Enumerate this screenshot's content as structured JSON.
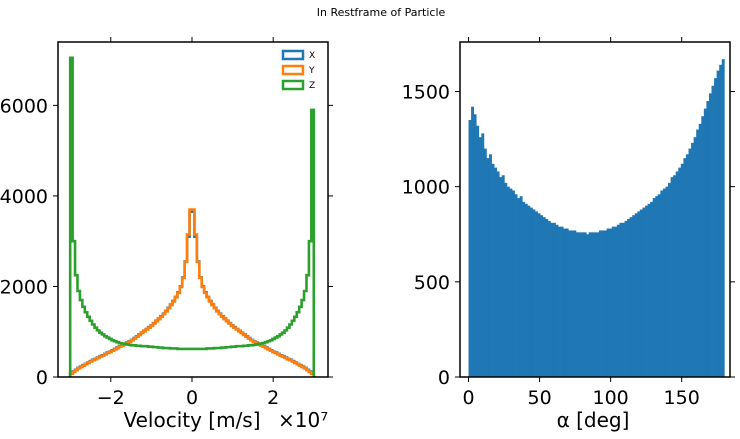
{
  "figure": {
    "suptitle": "In Restframe of Particle"
  },
  "chart_data": [
    {
      "type": "histogram",
      "xlabel": "Velocity [m/s]",
      "x_offset_text": "×10⁷",
      "x_scale": 10000000,
      "xlim": [
        -3.3,
        3.35
      ],
      "ylim": [
        0,
        7400
      ],
      "xticks": [
        -2,
        0,
        2
      ],
      "xtick_labels": [
        "−2",
        "0",
        "2"
      ],
      "yticks": [
        0,
        2000,
        4000,
        6000
      ],
      "ytick_labels": [
        "0",
        "2000",
        "4000",
        "6000"
      ],
      "histtype": "step",
      "bin_edges_start": -3.0,
      "bin_width": 0.06,
      "legend": {
        "position": "top-right",
        "entries": [
          "X",
          "Y",
          "Z"
        ]
      },
      "series": [
        {
          "name": "X",
          "color": "#1f77b4",
          "values": [
            80,
            120,
            160,
            200,
            230,
            260,
            290,
            320,
            350,
            380,
            400,
            430,
            460,
            480,
            510,
            540,
            560,
            590,
            620,
            650,
            680,
            700,
            730,
            760,
            790,
            820,
            860,
            900,
            940,
            980,
            1020,
            1060,
            1100,
            1140,
            1190,
            1240,
            1290,
            1340,
            1400,
            1460,
            1530,
            1600,
            1680,
            1770,
            1870,
            2000,
            2200,
            2550,
            3100,
            3650,
            3650,
            3100,
            2550,
            2200,
            2000,
            1870,
            1770,
            1680,
            1600,
            1530,
            1460,
            1400,
            1340,
            1290,
            1240,
            1190,
            1140,
            1100,
            1060,
            1020,
            980,
            940,
            900,
            860,
            820,
            790,
            760,
            730,
            700,
            680,
            650,
            620,
            590,
            560,
            540,
            510,
            480,
            460,
            430,
            400,
            380,
            350,
            320,
            290,
            260,
            230,
            200,
            160,
            120,
            80
          ]
        },
        {
          "name": "Y",
          "color": "#ff7f0e",
          "values": [
            70,
            110,
            150,
            190,
            220,
            250,
            280,
            310,
            340,
            370,
            390,
            420,
            450,
            470,
            500,
            530,
            550,
            580,
            610,
            640,
            670,
            690,
            720,
            750,
            780,
            810,
            850,
            890,
            930,
            970,
            1010,
            1050,
            1090,
            1130,
            1180,
            1230,
            1280,
            1330,
            1390,
            1450,
            1520,
            1590,
            1670,
            1760,
            1860,
            1990,
            2190,
            2540,
            3150,
            3700,
            3700,
            3150,
            2540,
            2190,
            1990,
            1860,
            1760,
            1670,
            1590,
            1520,
            1450,
            1390,
            1330,
            1280,
            1230,
            1180,
            1130,
            1090,
            1050,
            1010,
            970,
            930,
            890,
            850,
            810,
            780,
            750,
            720,
            690,
            670,
            640,
            610,
            580,
            550,
            530,
            500,
            470,
            450,
            420,
            390,
            370,
            340,
            310,
            280,
            250,
            220,
            190,
            150,
            110,
            70
          ]
        },
        {
          "name": "Z",
          "color": "#2ca02c",
          "values": [
            7050,
            3000,
            2250,
            1900,
            1700,
            1550,
            1430,
            1330,
            1240,
            1160,
            1090,
            1030,
            980,
            940,
            900,
            870,
            840,
            810,
            790,
            770,
            750,
            740,
            730,
            720,
            710,
            700,
            700,
            690,
            690,
            680,
            680,
            680,
            670,
            670,
            660,
            660,
            650,
            650,
            640,
            640,
            640,
            630,
            630,
            630,
            620,
            620,
            620,
            620,
            620,
            620,
            620,
            620,
            620,
            620,
            620,
            620,
            630,
            630,
            630,
            640,
            640,
            640,
            650,
            650,
            660,
            660,
            670,
            670,
            680,
            680,
            680,
            690,
            690,
            700,
            700,
            710,
            720,
            730,
            740,
            750,
            770,
            790,
            810,
            840,
            870,
            900,
            940,
            980,
            1030,
            1090,
            1160,
            1240,
            1330,
            1430,
            1550,
            1700,
            1900,
            2250,
            3000,
            5900
          ]
        }
      ]
    },
    {
      "type": "histogram",
      "xlabel": "α [deg]",
      "xlim": [
        -6,
        184
      ],
      "ylim": [
        0,
        1760
      ],
      "xticks": [
        0,
        50,
        100,
        150
      ],
      "xtick_labels": [
        "0",
        "50",
        "100",
        "150"
      ],
      "yticks": [
        0,
        500,
        1000,
        1500
      ],
      "ytick_labels": [
        "0",
        "500",
        "1000",
        "1500"
      ],
      "histtype": "bar",
      "color": "#1f77b4",
      "bin_edges_start": 0,
      "bin_width": 1.8,
      "values": [
        1350,
        1420,
        1380,
        1320,
        1260,
        1280,
        1200,
        1150,
        1170,
        1120,
        1100,
        1080,
        1050,
        1060,
        1020,
        1000,
        990,
        980,
        960,
        940,
        950,
        920,
        910,
        900,
        890,
        880,
        870,
        860,
        850,
        840,
        830,
        820,
        810,
        810,
        800,
        790,
        790,
        780,
        780,
        770,
        770,
        770,
        760,
        760,
        760,
        760,
        750,
        760,
        760,
        760,
        760,
        770,
        770,
        770,
        780,
        780,
        790,
        790,
        800,
        810,
        810,
        820,
        830,
        840,
        850,
        860,
        870,
        880,
        890,
        900,
        910,
        920,
        940,
        950,
        960,
        980,
        990,
        1000,
        1020,
        1050,
        1060,
        1080,
        1100,
        1120,
        1150,
        1170,
        1200,
        1230,
        1260,
        1300,
        1330,
        1370,
        1410,
        1450,
        1490,
        1530,
        1570,
        1610,
        1640,
        1670
      ]
    }
  ]
}
